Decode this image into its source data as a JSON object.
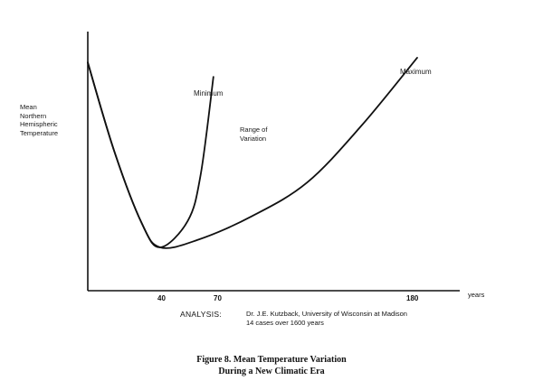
{
  "chart_data": {
    "type": "line",
    "ylabel_lines": [
      "Mean",
      "Northern",
      "Hemispheric",
      "Temperature"
    ],
    "x_unit": "years",
    "x_ticks": [
      "40",
      "70",
      "180"
    ],
    "xlim": [
      0,
      205
    ],
    "series": [
      {
        "name": "Minimum",
        "points": [
          [
            0,
            0.8
          ],
          [
            15,
            0.43
          ],
          [
            30,
            0.13
          ],
          [
            40,
            0.03
          ],
          [
            55,
            0.14
          ],
          [
            62,
            0.33
          ],
          [
            69,
            0.74
          ]
        ]
      },
      {
        "name": "Maximum",
        "points": [
          [
            0,
            0.8
          ],
          [
            15,
            0.43
          ],
          [
            30,
            0.13
          ],
          [
            40,
            0.03
          ],
          [
            60,
            0.06
          ],
          [
            90,
            0.16
          ],
          [
            120,
            0.3
          ],
          [
            150,
            0.54
          ],
          [
            180,
            0.82
          ]
        ]
      }
    ],
    "annotations": [
      "Minimum",
      "Maximum",
      "Range of",
      "Variation"
    ]
  },
  "analysis": {
    "label": "ANALYSIS:",
    "line1": "Dr. J.E. Kutzback, University of Wisconsin at Madison",
    "line2": "14 cases over 1600 years"
  },
  "caption": {
    "line1": "Figure 8.  Mean Temperature Variation",
    "line2": "During a New Climatic Era"
  }
}
